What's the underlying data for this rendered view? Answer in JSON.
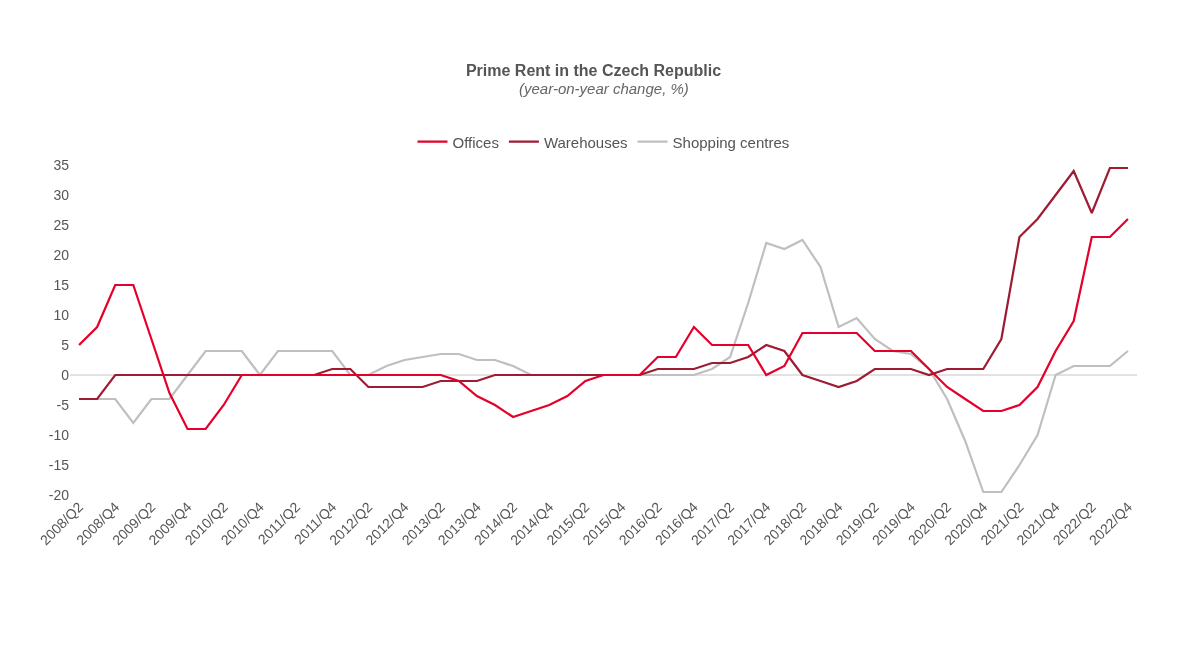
{
  "chart_data": {
    "type": "line",
    "title": "Prime Rent in the Czech Republic",
    "subtitle": "(year-on-year change, %)",
    "categories": [
      "2008/Q2",
      null,
      "2008/Q4",
      null,
      "2009/Q2",
      null,
      "2009/Q4",
      null,
      "2010/Q2",
      null,
      "2010/Q4",
      null,
      "2011/Q2",
      null,
      "2011/Q4",
      null,
      "2012/Q2",
      null,
      "2012/Q4",
      null,
      "2013/Q2",
      null,
      "2013/Q4",
      null,
      "2014/Q2",
      null,
      "2014/Q4",
      null,
      "2015/Q2",
      null,
      "2015/Q4",
      null,
      "2016/Q2",
      null,
      "2016/Q4",
      null,
      "2017/Q2",
      null,
      "2017/Q4",
      null,
      "2018/Q2",
      null,
      "2018/Q4",
      null,
      "2019/Q2",
      null,
      "2019/Q4",
      null,
      "2020/Q2",
      null,
      "2020/Q4",
      null,
      "2021/Q2",
      null,
      "2021/Q4",
      null,
      "2022/Q2",
      null,
      "2022/Q4"
    ],
    "series": [
      {
        "name": "Offices",
        "color": "#e4002b",
        "values": [
          5,
          8,
          15,
          15,
          6,
          -3,
          -9,
          -9,
          -5,
          0,
          0,
          0,
          0,
          0,
          0,
          0,
          0,
          0,
          0,
          0,
          0,
          -1,
          -3.5,
          -5,
          -7,
          -6,
          -5,
          -3.5,
          -1,
          0,
          0,
          0,
          3,
          3,
          8,
          5,
          5,
          5,
          0,
          1.5,
          7,
          7,
          7,
          7,
          4,
          4,
          4,
          1,
          -2,
          -4,
          -6,
          -6,
          -5,
          -2,
          4,
          9,
          23,
          23,
          26
        ]
      },
      {
        "name": "Warehouses",
        "color": "#9e1b32",
        "values": [
          -4,
          -4,
          0,
          0,
          0,
          0,
          0,
          0,
          0,
          0,
          0,
          0,
          0,
          0,
          1,
          1,
          -2,
          -2,
          -2,
          -2,
          -1,
          -1,
          -1,
          0,
          0,
          0,
          0,
          0,
          0,
          0,
          0,
          0,
          1,
          1,
          1,
          2,
          2,
          3,
          5,
          4,
          0,
          -1,
          -2,
          -1,
          1,
          1,
          1,
          0,
          1,
          1,
          1,
          6,
          23,
          26,
          30,
          34,
          27,
          34.5,
          34.5
        ]
      },
      {
        "name": "Shopping centres",
        "color": "#bfbfbf",
        "values": [
          -4,
          -4,
          -4,
          -8,
          -4,
          -4,
          0,
          4,
          4,
          4,
          0,
          4,
          4,
          4,
          4,
          0,
          0,
          1.5,
          2.5,
          3,
          3.5,
          3.5,
          2.5,
          2.5,
          1.5,
          0,
          0,
          0,
          0,
          0,
          0,
          0,
          0,
          0,
          0,
          1,
          3,
          12,
          22,
          21,
          22.5,
          18,
          8,
          9.5,
          6,
          4,
          3.5,
          1,
          -4,
          -11,
          -19.5,
          -19.5,
          -15,
          -10,
          0,
          1.5,
          1.5,
          1.5,
          4
        ]
      }
    ],
    "ylim": [
      -20,
      35
    ],
    "yticks": [
      -20,
      -15,
      -10,
      -5,
      0,
      5,
      10,
      15,
      20,
      25,
      30,
      35
    ],
    "ref_lines": [
      {
        "axis": "y",
        "value": 0,
        "color": "#d9d9d9"
      }
    ],
    "grid": false,
    "legend": "top",
    "marker": "none",
    "line_style": "solid"
  }
}
